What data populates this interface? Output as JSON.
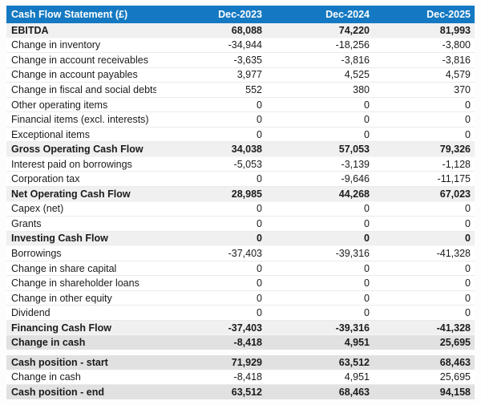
{
  "table": {
    "title": "Cash Flow Statement (£)",
    "columns": [
      "Dec-2023",
      "Dec-2024",
      "Dec-2025"
    ],
    "colors": {
      "header_bg": "#1479c2",
      "header_text": "#ffffff",
      "subtotal_bg": "#f0f0f0",
      "strong_bg": "#e1e1e1",
      "row_border": "#ebebeb",
      "text": "#1b1b1b"
    },
    "rows": [
      {
        "label": "EBITDA",
        "values": [
          "68,088",
          "74,220",
          "81,993"
        ],
        "style": "subtotal"
      },
      {
        "label": "Change in inventory",
        "values": [
          "-34,944",
          "-18,256",
          "-3,800"
        ],
        "style": "normal"
      },
      {
        "label": "Change in account receivables",
        "values": [
          "-3,635",
          "-3,816",
          "-3,816"
        ],
        "style": "normal"
      },
      {
        "label": "Change in account payables",
        "values": [
          "3,977",
          "4,525",
          "4,579"
        ],
        "style": "normal"
      },
      {
        "label": "Change in fiscal and social debts",
        "values": [
          "552",
          "380",
          "370"
        ],
        "style": "normal"
      },
      {
        "label": "Other operating items",
        "values": [
          "0",
          "0",
          "0"
        ],
        "style": "normal"
      },
      {
        "label": "Financial items (excl. interests)",
        "values": [
          "0",
          "0",
          "0"
        ],
        "style": "normal"
      },
      {
        "label": "Exceptional items",
        "values": [
          "0",
          "0",
          "0"
        ],
        "style": "normal"
      },
      {
        "label": "Gross Operating Cash Flow",
        "values": [
          "34,038",
          "57,053",
          "79,326"
        ],
        "style": "subtotal"
      },
      {
        "label": "Interest paid on borrowings",
        "values": [
          "-5,053",
          "-3,139",
          "-1,128"
        ],
        "style": "normal"
      },
      {
        "label": "Corporation tax",
        "values": [
          "0",
          "-9,646",
          "-11,175"
        ],
        "style": "normal"
      },
      {
        "label": "Net Operating Cash Flow",
        "values": [
          "28,985",
          "44,268",
          "67,023"
        ],
        "style": "subtotal"
      },
      {
        "label": "Capex (net)",
        "values": [
          "0",
          "0",
          "0"
        ],
        "style": "normal"
      },
      {
        "label": "Grants",
        "values": [
          "0",
          "0",
          "0"
        ],
        "style": "normal"
      },
      {
        "label": "Investing Cash Flow",
        "values": [
          "0",
          "0",
          "0"
        ],
        "style": "subtotal"
      },
      {
        "label": "Borrowings",
        "values": [
          "-37,403",
          "-39,316",
          "-41,328"
        ],
        "style": "normal"
      },
      {
        "label": "Change in share capital",
        "values": [
          "0",
          "0",
          "0"
        ],
        "style": "normal"
      },
      {
        "label": "Change in shareholder loans",
        "values": [
          "0",
          "0",
          "0"
        ],
        "style": "normal"
      },
      {
        "label": "Change in other equity",
        "values": [
          "0",
          "0",
          "0"
        ],
        "style": "normal"
      },
      {
        "label": "Dividend",
        "values": [
          "0",
          "0",
          "0"
        ],
        "style": "normal"
      },
      {
        "label": "Financing Cash Flow",
        "values": [
          "-37,403",
          "-39,316",
          "-41,328"
        ],
        "style": "subtotal"
      },
      {
        "label": "Change in cash",
        "values": [
          "-8,418",
          "4,951",
          "25,695"
        ],
        "style": "strong"
      },
      {
        "label": "Cash position - start",
        "values": [
          "71,929",
          "63,512",
          "68,463"
        ],
        "style": "strong",
        "gap_before": true
      },
      {
        "label": "Change in cash",
        "values": [
          "-8,418",
          "4,951",
          "25,695"
        ],
        "style": "normal"
      },
      {
        "label": "Cash position - end",
        "values": [
          "63,512",
          "68,463",
          "94,158"
        ],
        "style": "strong"
      }
    ]
  }
}
